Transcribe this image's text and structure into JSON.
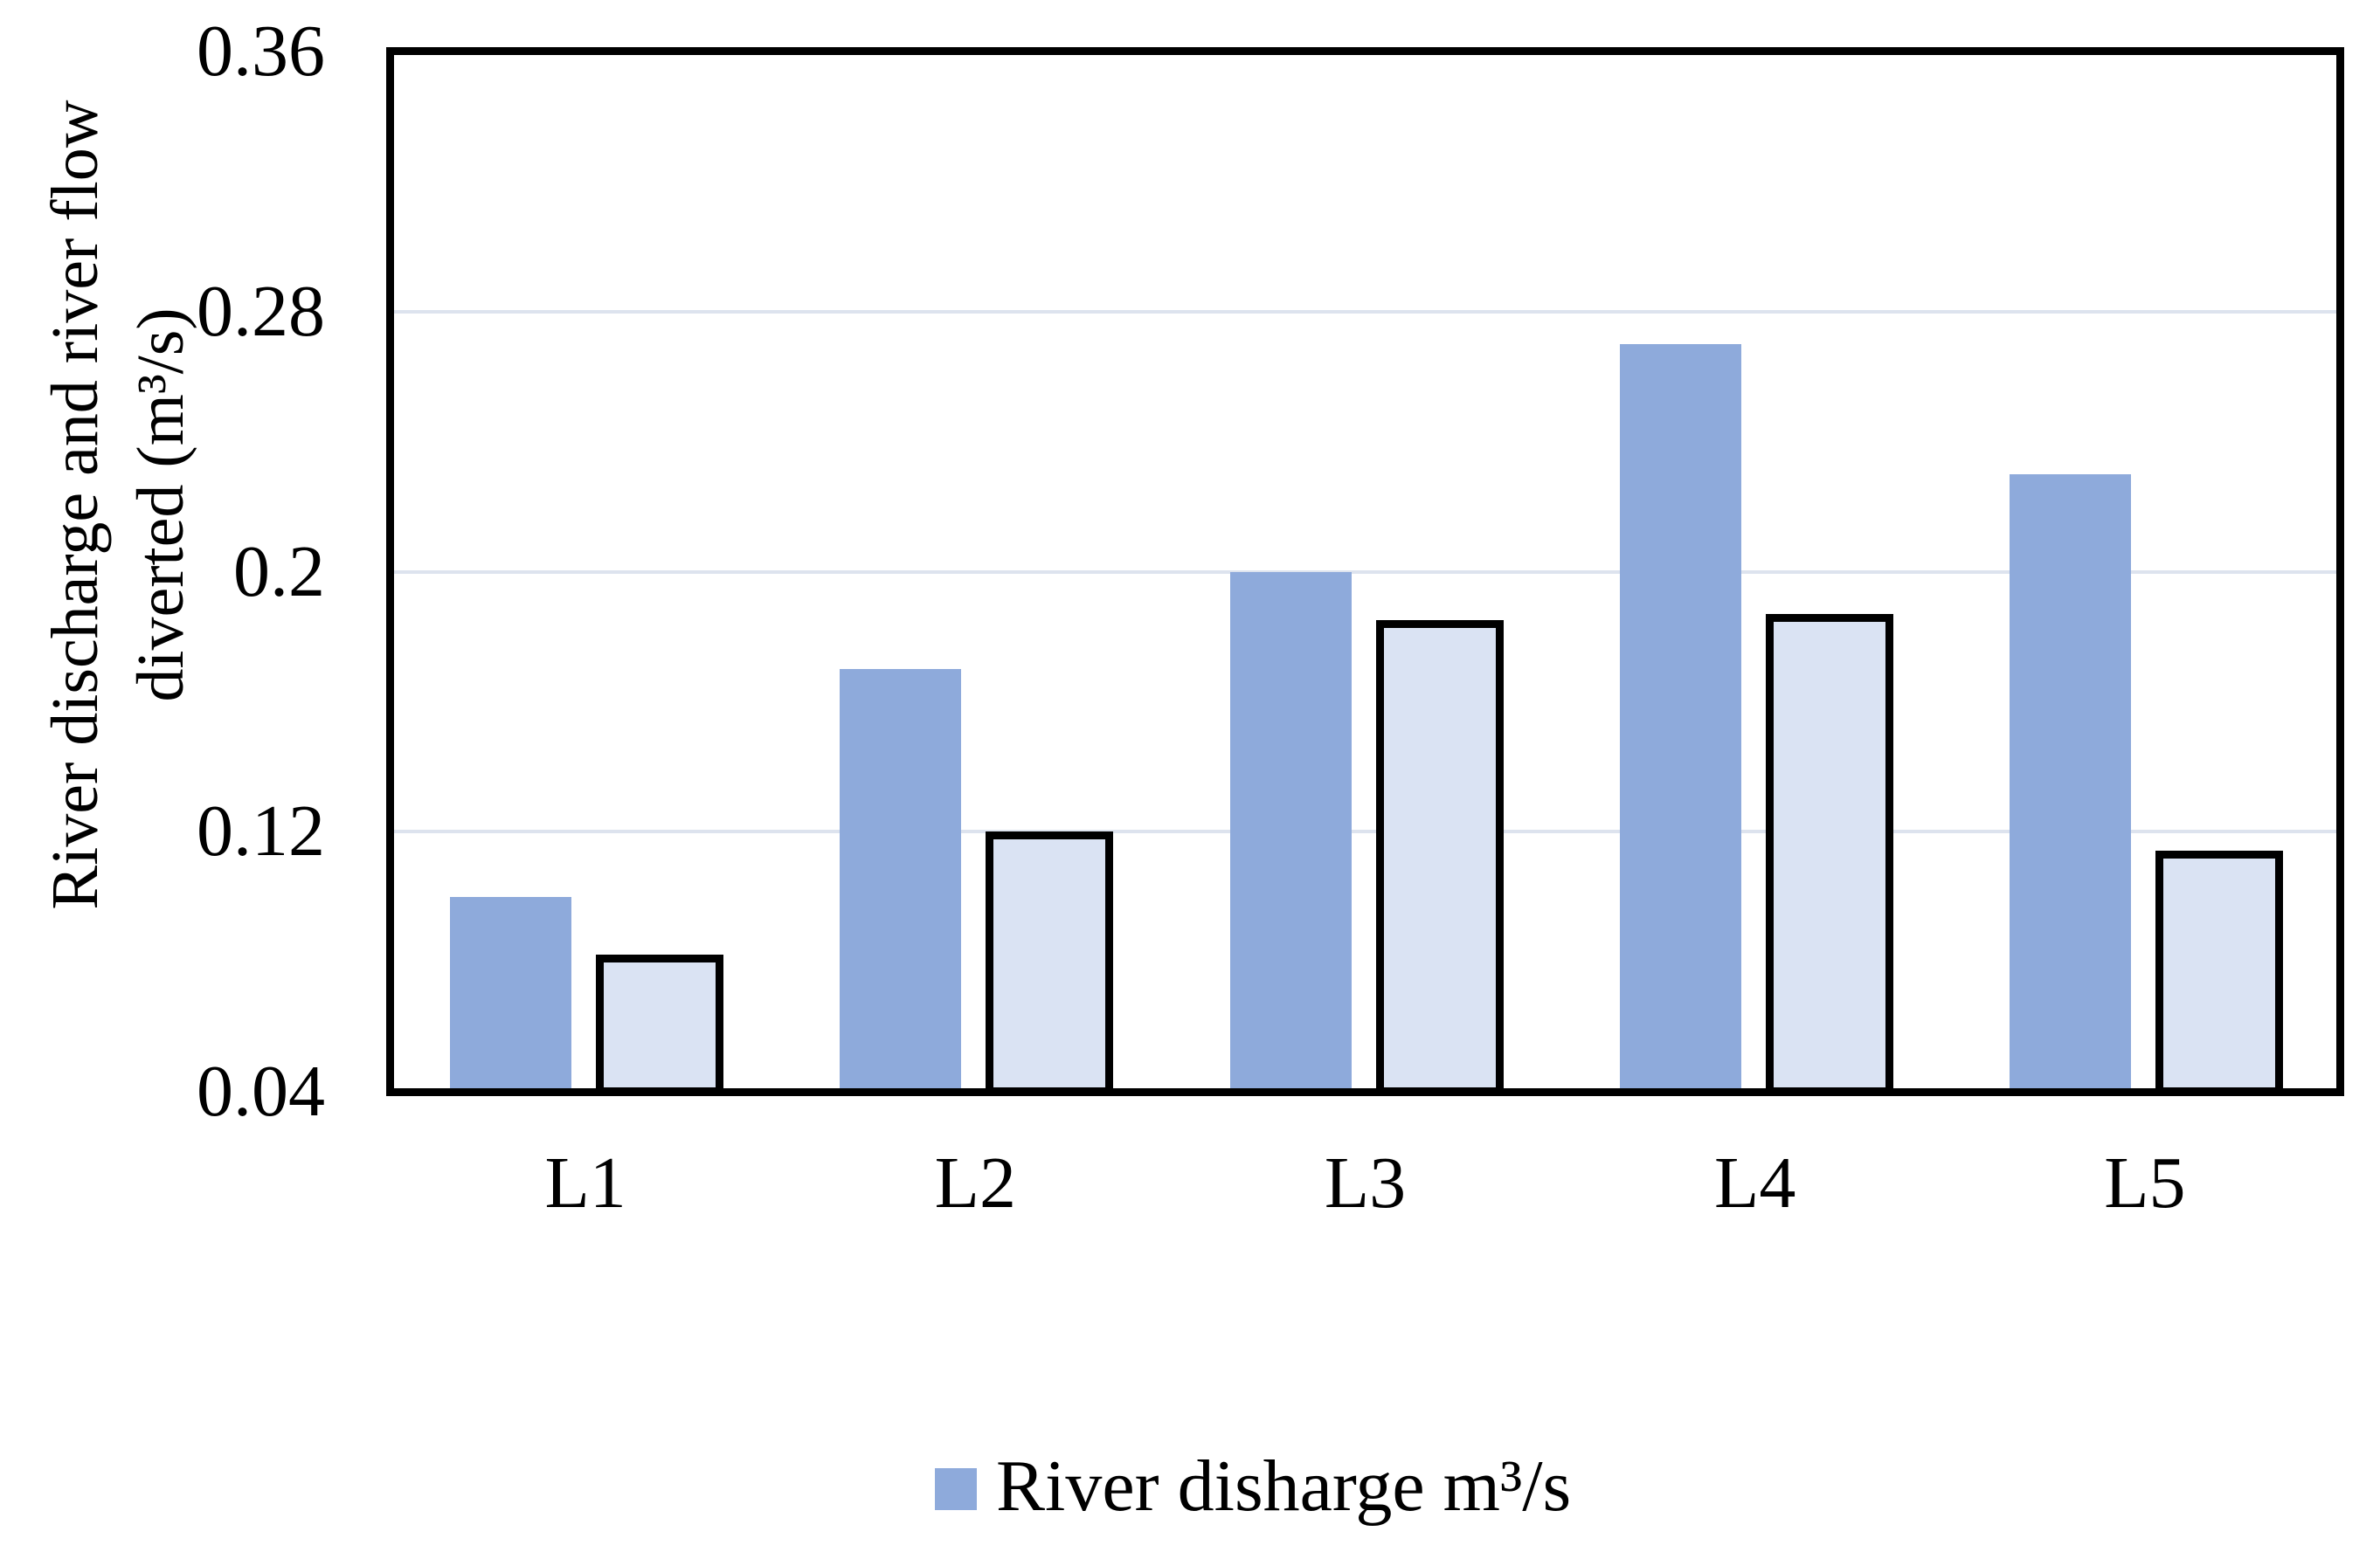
{
  "chart_data": {
    "type": "bar",
    "title": "",
    "categories": [
      "L1",
      "L2",
      "L3",
      "L4",
      "L5"
    ],
    "series": [
      {
        "name": "River disharge m³/s",
        "values": [
          0.1,
          0.17,
          0.2,
          0.27,
          0.23
        ],
        "fill": "#8EAADB",
        "outline": null,
        "in_legend": true
      },
      {
        "name": "",
        "values": [
          0.081,
          0.119,
          0.184,
          0.186,
          0.113
        ],
        "fill": "#DAE3F3",
        "outline": "#000000",
        "in_legend": false
      }
    ],
    "ylabel_line1": "River discharge and river flow",
    "ylabel_line2": "diverted (m³/s)",
    "xlabel": "",
    "ylim": [
      0.04,
      0.36
    ],
    "yticks": [
      0.36,
      0.28,
      0.2,
      0.12,
      0.04
    ],
    "ytick_labels": [
      "0.36",
      "0.28",
      "0.2",
      "0.12",
      "0.04"
    ],
    "grid": true,
    "legend_position": "bottom-center",
    "colors": {
      "grid": "#DDE3EE",
      "axis": "#000000",
      "background": "#FFFFFF"
    }
  }
}
